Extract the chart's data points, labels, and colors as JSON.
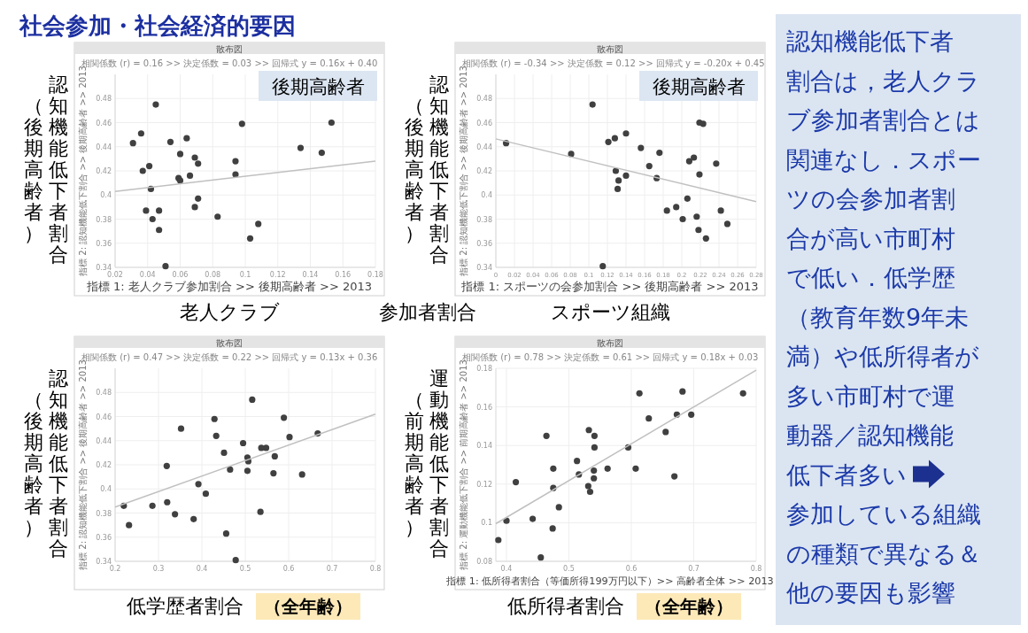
{
  "chart_data": [
    {
      "type": "scatter",
      "title": "散布図",
      "subtitle": "相関係数 (r) = 0.16 >> 決定係数 = 0.03 >> 回帰式 y = 0.16x + 0.40",
      "xlabel": "指標 1: 老人クラブ参加割合 >> 後期高齢者 >> 2013",
      "ylabel": "指標 2: 認知機能低下割合 >> 後期高齢者 >> 2013",
      "annotations": [
        "認知機能低下者割合",
        "（後期高齢者）",
        "老人クラブ",
        "後期高齢者",
        "参加者割合"
      ],
      "xlim": [
        0.02,
        0.18
      ],
      "xticks": [
        0.02,
        0.04,
        0.06,
        0.08,
        0.1,
        0.12,
        0.14,
        0.16,
        0.18
      ],
      "ylim": [
        0.34,
        0.5
      ],
      "yticks": [
        0.34,
        0.36,
        0.38,
        0.4,
        0.42,
        0.44,
        0.46,
        0.48
      ],
      "grid": true,
      "series": [
        {
          "type": "scatter",
          "marker": "circle",
          "color": "#404040",
          "x": [
            0.045,
            0.031,
            0.036,
            0.054,
            0.064,
            0.037,
            0.041,
            0.042,
            0.06,
            0.069,
            0.071,
            0.059,
            0.06,
            0.066,
            0.071,
            0.069,
            0.039,
            0.047,
            0.043,
            0.047,
            0.051,
            0.083,
            0.094,
            0.094,
            0.098,
            0.103,
            0.108,
            0.134,
            0.147,
            0.153
          ],
          "values": [
            0.475,
            0.443,
            0.451,
            0.444,
            0.447,
            0.42,
            0.424,
            0.405,
            0.434,
            0.431,
            0.426,
            0.414,
            0.412,
            0.416,
            0.397,
            0.39,
            0.387,
            0.387,
            0.38,
            0.371,
            0.341,
            0.382,
            0.428,
            0.417,
            0.459,
            0.364,
            0.376,
            0.439,
            0.435,
            0.46
          ]
        },
        {
          "type": "line",
          "color": "#c0c0c0",
          "x": [
            0.02,
            0.18
          ],
          "values": [
            0.403,
            0.428
          ]
        }
      ]
    },
    {
      "type": "scatter",
      "title": "散布図",
      "subtitle": "相関係数 (r) = -0.34 >> 決定係数 = 0.12 >> 回帰式 y = -0.20x + 0.45",
      "xlabel": "指標 1: スポーツの会参加割合 >> 後期高齢者 >> 2013",
      "ylabel": "指標 2: 認知機能低下割合 >> 後期高齢者 >> 2013",
      "annotations": [
        "認知機能低下者割合",
        "（後期高齢者）",
        "スポーツ組織",
        "後期高齢者"
      ],
      "xlim": [
        0,
        0.28
      ],
      "xticks": [
        0,
        0.02,
        0.04,
        0.06,
        0.08,
        0.1,
        0.12,
        0.14,
        0.16,
        0.18,
        0.2,
        0.22,
        0.24,
        0.26,
        0.28
      ],
      "ylim": [
        0.34,
        0.5
      ],
      "yticks": [
        0.34,
        0.36,
        0.38,
        0.4,
        0.42,
        0.44,
        0.46,
        0.48
      ],
      "grid": true,
      "series": [
        {
          "type": "scatter",
          "marker": "circle",
          "color": "#404040",
          "x": [
            0.011,
            0.081,
            0.104,
            0.115,
            0.121,
            0.128,
            0.14,
            0.129,
            0.132,
            0.131,
            0.14,
            0.156,
            0.165,
            0.176,
            0.173,
            0.184,
            0.194,
            0.206,
            0.201,
            0.208,
            0.213,
            0.219,
            0.223,
            0.219,
            0.216,
            0.218,
            0.226,
            0.237,
            0.242,
            0.249
          ],
          "values": [
            0.443,
            0.434,
            0.475,
            0.341,
            0.444,
            0.447,
            0.451,
            0.42,
            0.412,
            0.405,
            0.416,
            0.439,
            0.424,
            0.435,
            0.414,
            0.387,
            0.39,
            0.397,
            0.38,
            0.428,
            0.431,
            0.46,
            0.459,
            0.417,
            0.382,
            0.371,
            0.364,
            0.426,
            0.387,
            0.376
          ]
        },
        {
          "type": "line",
          "color": "#c0c0c0",
          "x": [
            0,
            0.28
          ],
          "values": [
            0.4465,
            0.3945
          ]
        }
      ]
    },
    {
      "type": "scatter",
      "title": "散布図",
      "subtitle": "相関係数 (r) = 0.47 >> 決定係数 = 0.22 >> 回帰式 y = 0.13x + 0.36",
      "ylabel": "指標 2: 認知機能低下割合 >> 後期高齢者 >> 2013",
      "annotations": [
        "認知機能低下者割合",
        "（後期高齢者）",
        "低学歴者割合",
        "（全年齢）"
      ],
      "xlim": [
        0.2,
        0.8
      ],
      "xticks": [
        0.2,
        0.3,
        0.4,
        0.5,
        0.6,
        0.7,
        0.8
      ],
      "ylim": [
        0.34,
        0.5
      ],
      "yticks": [
        0.34,
        0.36,
        0.38,
        0.4,
        0.42,
        0.44,
        0.46,
        0.48
      ],
      "grid": true,
      "series": [
        {
          "type": "scatter",
          "marker": "circle",
          "color": "#404040",
          "x": [
            0.22,
            0.232,
            0.286,
            0.319,
            0.32,
            0.338,
            0.352,
            0.381,
            0.392,
            0.409,
            0.429,
            0.433,
            0.451,
            0.456,
            0.465,
            0.478,
            0.495,
            0.505,
            0.507,
            0.505,
            0.516,
            0.535,
            0.537,
            0.548,
            0.565,
            0.568,
            0.589,
            0.602,
            0.631,
            0.667
          ],
          "values": [
            0.386,
            0.37,
            0.386,
            0.419,
            0.389,
            0.379,
            0.45,
            0.375,
            0.404,
            0.396,
            0.458,
            0.444,
            0.43,
            0.363,
            0.416,
            0.341,
            0.438,
            0.426,
            0.423,
            0.415,
            0.474,
            0.381,
            0.434,
            0.434,
            0.413,
            0.427,
            0.459,
            0.443,
            0.412,
            0.446
          ]
        },
        {
          "type": "line",
          "color": "#c0c0c0",
          "x": [
            0.2,
            0.8
          ],
          "values": [
            0.385,
            0.462
          ]
        }
      ]
    },
    {
      "type": "scatter",
      "title": "散布図",
      "subtitle": "相関係数 (r) = 0.78 >> 決定係数 = 0.61 >> 回帰式 y = 0.18x + 0.03",
      "xlabel": "指標 1: 低所得者割合（等価所得199万円以下）>> 高齢者全体 >> 2013",
      "ylabel": "指標 2: 運動機能低下割合 >> 前期高齢者 >> 2013",
      "annotations": [
        "運動機能低下者割合",
        "（前期高齢者）",
        "低所得者割合",
        "（全年齢）"
      ],
      "xlim": [
        0.383,
        0.8
      ],
      "xticks": [
        0.4,
        0.5,
        0.6,
        0.7,
        0.8
      ],
      "ylim": [
        0.08,
        0.18
      ],
      "yticks": [
        0.08,
        0.1,
        0.12,
        0.14,
        0.16,
        0.18
      ],
      "grid": true,
      "series": [
        {
          "type": "scatter",
          "marker": "circle",
          "color": "#404040",
          "x": [
            0.387,
            0.4,
            0.415,
            0.442,
            0.455,
            0.464,
            0.474,
            0.475,
            0.475,
            0.484,
            0.513,
            0.516,
            0.531,
            0.532,
            0.534,
            0.54,
            0.54,
            0.541,
            0.541,
            0.562,
            0.595,
            0.607,
            0.613,
            0.628,
            0.655,
            0.669,
            0.673,
            0.682,
            0.696,
            0.779
          ],
          "values": [
            0.091,
            0.101,
            0.121,
            0.102,
            0.082,
            0.145,
            0.097,
            0.128,
            0.118,
            0.108,
            0.132,
            0.125,
            0.119,
            0.148,
            0.116,
            0.127,
            0.123,
            0.145,
            0.139,
            0.128,
            0.139,
            0.128,
            0.167,
            0.154,
            0.147,
            0.124,
            0.156,
            0.168,
            0.156,
            0.167
          ]
        },
        {
          "type": "line",
          "color": "#c0c0c0",
          "x": [
            0.383,
            0.8
          ],
          "values": [
            0.0995,
            0.179
          ]
        }
      ]
    },
    {
      "type": "other",
      "title": "社会参加・社会経済的要因",
      "annotations": [
        "認知機能低下者",
        "割合は，老人クラ",
        "ブ参加者割合とは",
        "関連なし．スポー",
        "ツの会参加者割",
        "合が高い市町村",
        "で低い．低学歴",
        "（教育年数9年未",
        "満）や低所得者が",
        "多い市町村で運",
        "動器／認知機能",
        "低下者多い",
        "参加している組織",
        "の種類で異なる＆",
        "他の要因も影響"
      ]
    }
  ]
}
